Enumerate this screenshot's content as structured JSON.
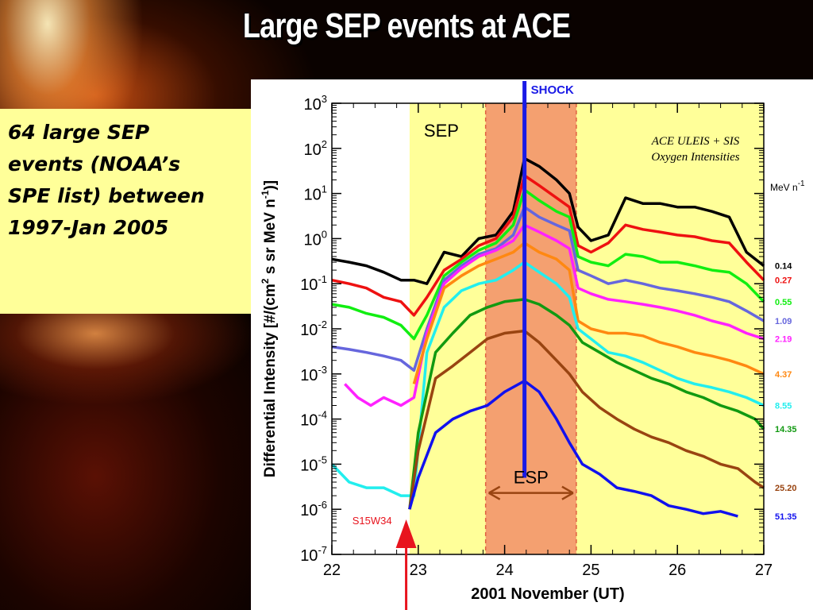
{
  "slide": {
    "title": "Large SEP events at ACE",
    "note": "64 large SEP events (NOAA’s SPE list) between 1997-Jan 2005",
    "note_lines": [
      "64 large SEP",
      "events (NOAA’s",
      "SPE list) between",
      "1997-Jan 2005"
    ]
  },
  "colors": {
    "sep_region": "#ffff99",
    "esp_region": "#f4a070",
    "shock_line": "#1a1ae6",
    "arrow": "#e8141e"
  },
  "chart_data": {
    "type": "line",
    "title": "",
    "inset_title": [
      "ACE ULEIS + SIS",
      "Oxygen Intensities"
    ],
    "xlabel": "2001 November (UT)",
    "ylabel": "Differential Intensity [#/(cm² s sr MeV n⁻¹)]",
    "ylabel_base": "Differential Intensity [#/(cm",
    "ylabel_mid": " s sr MeV n",
    "ylabel_end": ")]",
    "y_scale": "log",
    "xlim": [
      22,
      27
    ],
    "ylim": [
      1e-07,
      1000
    ],
    "x_ticks": [
      "22",
      "23",
      "24",
      "25",
      "26",
      "27"
    ],
    "y_ticks": [
      {
        "exp": "3",
        "value": 1000
      },
      {
        "exp": "2",
        "value": 100
      },
      {
        "exp": "1",
        "value": 10
      },
      {
        "exp": "0",
        "value": 1
      },
      {
        "exp": "-1",
        "value": 0.1
      },
      {
        "exp": "-2",
        "value": 0.01
      },
      {
        "exp": "-3",
        "value": 0.001
      },
      {
        "exp": "-4",
        "value": 0.0001
      },
      {
        "exp": "-5",
        "value": 1e-05
      },
      {
        "exp": "-6",
        "value": 1e-06
      },
      {
        "exp": "-7",
        "value": 1e-07
      }
    ],
    "legend_title": "MeV n",
    "legend_title_exp": "-1",
    "regions": [
      {
        "label": "SEP",
        "x": [
          22.9,
          27
        ]
      },
      {
        "label": "ESP",
        "x": [
          23.78,
          24.83
        ]
      }
    ],
    "shock": {
      "label": "SHOCK",
      "x": 24.23
    },
    "flare_marker": {
      "label": "S15W34",
      "x": 22.86
    },
    "series": [
      {
        "name": "0.14",
        "color": "#000000",
        "points": [
          [
            22,
            0.35
          ],
          [
            22.2,
            0.3
          ],
          [
            22.4,
            0.25
          ],
          [
            22.6,
            0.18
          ],
          [
            22.8,
            0.12
          ],
          [
            22.95,
            0.12
          ],
          [
            23.1,
            0.1
          ],
          [
            23.3,
            0.5
          ],
          [
            23.5,
            0.4
          ],
          [
            23.7,
            1.0
          ],
          [
            23.9,
            1.2
          ],
          [
            24.1,
            4
          ],
          [
            24.23,
            60
          ],
          [
            24.4,
            40
          ],
          [
            24.6,
            20
          ],
          [
            24.75,
            10
          ],
          [
            24.85,
            1.8
          ],
          [
            25.0,
            0.9
          ],
          [
            25.2,
            1.2
          ],
          [
            25.4,
            8
          ],
          [
            25.6,
            6
          ],
          [
            25.8,
            6
          ],
          [
            26.0,
            5
          ],
          [
            26.2,
            5
          ],
          [
            26.4,
            4
          ],
          [
            26.6,
            3
          ],
          [
            26.8,
            0.5
          ],
          [
            27,
            0.25
          ]
        ]
      },
      {
        "name": "0.27",
        "color": "#ee1111",
        "points": [
          [
            22,
            0.12
          ],
          [
            22.2,
            0.1
          ],
          [
            22.4,
            0.08
          ],
          [
            22.6,
            0.05
          ],
          [
            22.8,
            0.04
          ],
          [
            22.95,
            0.02
          ],
          [
            23.1,
            0.05
          ],
          [
            23.3,
            0.2
          ],
          [
            23.5,
            0.35
          ],
          [
            23.7,
            0.7
          ],
          [
            23.9,
            1.0
          ],
          [
            24.1,
            3
          ],
          [
            24.23,
            25
          ],
          [
            24.4,
            15
          ],
          [
            24.6,
            8
          ],
          [
            24.75,
            5
          ],
          [
            24.85,
            0.7
          ],
          [
            25.0,
            0.5
          ],
          [
            25.2,
            0.8
          ],
          [
            25.4,
            2
          ],
          [
            25.6,
            1.6
          ],
          [
            25.8,
            1.4
          ],
          [
            26.0,
            1.2
          ],
          [
            26.2,
            1.1
          ],
          [
            26.4,
            0.9
          ],
          [
            26.6,
            0.8
          ],
          [
            26.8,
            0.3
          ],
          [
            27,
            0.12
          ]
        ]
      },
      {
        "name": "0.55",
        "color": "#11ee11",
        "points": [
          [
            22,
            0.035
          ],
          [
            22.2,
            0.03
          ],
          [
            22.4,
            0.022
          ],
          [
            22.6,
            0.018
          ],
          [
            22.8,
            0.012
          ],
          [
            22.95,
            0.006
          ],
          [
            23.1,
            0.02
          ],
          [
            23.3,
            0.15
          ],
          [
            23.5,
            0.3
          ],
          [
            23.7,
            0.55
          ],
          [
            23.9,
            0.8
          ],
          [
            24.1,
            2
          ],
          [
            24.23,
            12
          ],
          [
            24.4,
            7
          ],
          [
            24.6,
            4
          ],
          [
            24.75,
            3
          ],
          [
            24.85,
            0.4
          ],
          [
            25.0,
            0.3
          ],
          [
            25.2,
            0.25
          ],
          [
            25.4,
            0.45
          ],
          [
            25.6,
            0.4
          ],
          [
            25.8,
            0.3
          ],
          [
            26.0,
            0.3
          ],
          [
            26.2,
            0.25
          ],
          [
            26.4,
            0.2
          ],
          [
            26.6,
            0.18
          ],
          [
            26.8,
            0.1
          ],
          [
            27,
            0.04
          ]
        ]
      },
      {
        "name": "1.09",
        "color": "#6666dd",
        "points": [
          [
            22,
            0.004
          ],
          [
            22.2,
            0.0035
          ],
          [
            22.4,
            0.003
          ],
          [
            22.6,
            0.0025
          ],
          [
            22.8,
            0.002
          ],
          [
            22.95,
            0.0012
          ],
          [
            23.1,
            0.01
          ],
          [
            23.3,
            0.12
          ],
          [
            23.5,
            0.25
          ],
          [
            23.7,
            0.45
          ],
          [
            23.9,
            0.6
          ],
          [
            24.1,
            1.2
          ],
          [
            24.23,
            5
          ],
          [
            24.4,
            3
          ],
          [
            24.6,
            2
          ],
          [
            24.75,
            1.5
          ],
          [
            24.85,
            0.2
          ],
          [
            25.0,
            0.15
          ],
          [
            25.2,
            0.1
          ],
          [
            25.4,
            0.12
          ],
          [
            25.6,
            0.1
          ],
          [
            25.8,
            0.08
          ],
          [
            26.0,
            0.07
          ],
          [
            26.2,
            0.06
          ],
          [
            26.4,
            0.05
          ],
          [
            26.6,
            0.04
          ],
          [
            26.8,
            0.025
          ],
          [
            27,
            0.015
          ]
        ]
      },
      {
        "name": "2.19",
        "color": "#ff22ff",
        "points": [
          [
            22.15,
            0.0006
          ],
          [
            22.3,
            0.0003
          ],
          [
            22.45,
            0.0002
          ],
          [
            22.6,
            0.0003
          ],
          [
            22.8,
            0.0002
          ],
          [
            22.95,
            0.0003
          ],
          [
            23.1,
            0.008
          ],
          [
            23.3,
            0.1
          ],
          [
            23.5,
            0.22
          ],
          [
            23.7,
            0.4
          ],
          [
            23.9,
            0.55
          ],
          [
            24.1,
            0.9
          ],
          [
            24.23,
            2
          ],
          [
            24.4,
            1.4
          ],
          [
            24.6,
            0.9
          ],
          [
            24.75,
            0.6
          ],
          [
            24.85,
            0.08
          ],
          [
            25.0,
            0.06
          ],
          [
            25.2,
            0.045
          ],
          [
            25.4,
            0.04
          ],
          [
            25.6,
            0.035
          ],
          [
            25.8,
            0.03
          ],
          [
            26.0,
            0.025
          ],
          [
            26.2,
            0.02
          ],
          [
            26.4,
            0.015
          ],
          [
            26.6,
            0.012
          ],
          [
            26.8,
            0.008
          ],
          [
            27,
            0.006
          ]
        ]
      },
      {
        "name": "4.37",
        "color": "#ff8811",
        "points": [
          [
            22.95,
            0.0006
          ],
          [
            23.1,
            0.006
          ],
          [
            23.3,
            0.08
          ],
          [
            23.5,
            0.15
          ],
          [
            23.7,
            0.25
          ],
          [
            23.9,
            0.35
          ],
          [
            24.1,
            0.5
          ],
          [
            24.23,
            0.8
          ],
          [
            24.4,
            0.5
          ],
          [
            24.6,
            0.35
          ],
          [
            24.75,
            0.2
          ],
          [
            24.85,
            0.015
          ],
          [
            25.0,
            0.01
          ],
          [
            25.2,
            0.008
          ],
          [
            25.4,
            0.008
          ],
          [
            25.6,
            0.007
          ],
          [
            25.8,
            0.005
          ],
          [
            26.0,
            0.004
          ],
          [
            26.2,
            0.003
          ],
          [
            26.4,
            0.0025
          ],
          [
            26.6,
            0.002
          ],
          [
            26.8,
            0.0015
          ],
          [
            27,
            0.001
          ]
        ]
      },
      {
        "name": "8.55",
        "color": "#22eeee",
        "points": [
          [
            22,
            1e-05
          ],
          [
            22.2,
            4e-06
          ],
          [
            22.4,
            3e-06
          ],
          [
            22.6,
            3e-06
          ],
          [
            22.8,
            2e-06
          ],
          [
            22.95,
            2e-06
          ],
          [
            23.1,
            0.003
          ],
          [
            23.3,
            0.03
          ],
          [
            23.5,
            0.07
          ],
          [
            23.7,
            0.1
          ],
          [
            23.9,
            0.12
          ],
          [
            24.1,
            0.2
          ],
          [
            24.23,
            0.3
          ],
          [
            24.4,
            0.18
          ],
          [
            24.6,
            0.1
          ],
          [
            24.75,
            0.05
          ],
          [
            24.85,
            0.01
          ],
          [
            25.0,
            0.006
          ],
          [
            25.2,
            0.003
          ],
          [
            25.4,
            0.0025
          ],
          [
            25.6,
            0.0018
          ],
          [
            25.8,
            0.0012
          ],
          [
            26.0,
            0.0008
          ],
          [
            26.2,
            0.0006
          ],
          [
            26.4,
            0.0005
          ],
          [
            26.6,
            0.0004
          ],
          [
            26.8,
            0.0003
          ],
          [
            27,
            0.0002
          ]
        ]
      },
      {
        "name": "14.35",
        "color": "#119911",
        "points": [
          [
            22.9,
            1e-06
          ],
          [
            23.0,
            5e-05
          ],
          [
            23.2,
            0.003
          ],
          [
            23.4,
            0.008
          ],
          [
            23.6,
            0.02
          ],
          [
            23.8,
            0.03
          ],
          [
            24.0,
            0.04
          ],
          [
            24.23,
            0.045
          ],
          [
            24.4,
            0.035
          ],
          [
            24.6,
            0.02
          ],
          [
            24.75,
            0.012
          ],
          [
            24.9,
            0.005
          ],
          [
            25.1,
            0.003
          ],
          [
            25.3,
            0.0018
          ],
          [
            25.5,
            0.0012
          ],
          [
            25.7,
            0.0008
          ],
          [
            25.9,
            0.0006
          ],
          [
            26.1,
            0.0004
          ],
          [
            26.3,
            0.0003
          ],
          [
            26.5,
            0.0002
          ],
          [
            26.7,
            0.00015
          ],
          [
            26.9,
            0.0001
          ],
          [
            27,
            6e-05
          ]
        ]
      },
      {
        "name": "25.20",
        "color": "#994411",
        "points": [
          [
            22.9,
            1e-06
          ],
          [
            23.0,
            2e-05
          ],
          [
            23.2,
            0.0008
          ],
          [
            23.4,
            0.0015
          ],
          [
            23.6,
            0.003
          ],
          [
            23.8,
            0.006
          ],
          [
            24.0,
            0.008
          ],
          [
            24.23,
            0.009
          ],
          [
            24.4,
            0.005
          ],
          [
            24.6,
            0.002
          ],
          [
            24.75,
            0.001
          ],
          [
            24.9,
            0.0004
          ],
          [
            25.1,
            0.00018
          ],
          [
            25.3,
            0.0001
          ],
          [
            25.5,
            6e-05
          ],
          [
            25.7,
            4e-05
          ],
          [
            25.9,
            3e-05
          ],
          [
            26.1,
            2e-05
          ],
          [
            26.3,
            1.5e-05
          ],
          [
            26.5,
            1e-05
          ],
          [
            26.7,
            8e-06
          ],
          [
            26.9,
            4e-06
          ],
          [
            27,
            3e-06
          ]
        ]
      },
      {
        "name": "51.35",
        "color": "#1111ee",
        "points": [
          [
            22.9,
            1e-06
          ],
          [
            23.0,
            5e-06
          ],
          [
            23.2,
            5e-05
          ],
          [
            23.4,
            0.0001
          ],
          [
            23.6,
            0.00015
          ],
          [
            23.8,
            0.0002
          ],
          [
            24.0,
            0.0004
          ],
          [
            24.23,
            0.0007
          ],
          [
            24.4,
            0.0004
          ],
          [
            24.6,
            0.0001
          ],
          [
            24.75,
            3e-05
          ],
          [
            24.9,
            1e-05
          ],
          [
            25.1,
            6e-06
          ],
          [
            25.3,
            3e-06
          ],
          [
            25.5,
            2.5e-06
          ],
          [
            25.7,
            2e-06
          ],
          [
            25.9,
            1.2e-06
          ],
          [
            26.1,
            1e-06
          ],
          [
            26.3,
            8e-07
          ],
          [
            26.5,
            9e-07
          ],
          [
            26.7,
            7e-07
          ]
        ]
      }
    ]
  }
}
